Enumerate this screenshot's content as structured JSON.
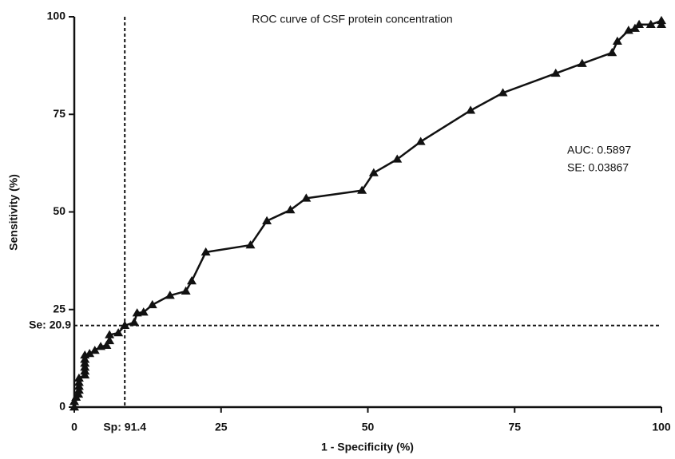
{
  "chart_data": {
    "type": "line",
    "title": "ROC curve of CSF protein concentration",
    "x_label": "1 - Specificity (%)",
    "y_label": "Sensitivity (%)",
    "xlim": [
      0,
      100
    ],
    "ylim": [
      0,
      100
    ],
    "xticks": [
      0,
      25,
      50,
      75,
      100
    ],
    "yticks": [
      0,
      25,
      50,
      75,
      100
    ],
    "series": [
      {
        "color": "#111111",
        "marker": "triangle",
        "x": [
          0,
          0,
          0.3,
          0.7,
          0.8,
          0.8,
          0.8,
          0.8,
          1.8,
          1.8,
          1.8,
          1.8,
          1.8,
          1.8,
          2.6,
          3.5,
          4.5,
          5.5,
          6,
          6,
          7.5,
          8.6,
          10.2,
          10.7,
          11.8,
          13.3,
          16.3,
          19,
          20,
          22.4,
          30,
          32.8,
          36.8,
          39.5,
          49,
          51,
          55,
          59,
          67.5,
          73,
          82,
          86.5,
          91.6,
          92.5,
          94.4,
          95.5,
          96.2,
          98.2,
          100,
          100
        ],
        "values": [
          0,
          1.4,
          2.5,
          3.3,
          4.3,
          5.3,
          6.3,
          7.4,
          8.2,
          9.2,
          10.2,
          11.2,
          12.2,
          13.3,
          13.7,
          14.5,
          15.5,
          15.8,
          17,
          18.5,
          19,
          20.9,
          21.7,
          24.1,
          24.3,
          26.2,
          28.6,
          29.7,
          32.3,
          39.7,
          41.5,
          47.7,
          50.5,
          53.5,
          55.5,
          60,
          63.5,
          68,
          76,
          80.5,
          85.5,
          88,
          90.8,
          93.7,
          96.5,
          97,
          98,
          98,
          99,
          98
        ]
      }
    ],
    "reference_lines": [
      {
        "axis": "x",
        "value": 8.6,
        "label": "Sp: 91.4"
      },
      {
        "axis": "y",
        "value": 20.9,
        "label": "Se: 20.9"
      }
    ],
    "annotations": [
      "AUC: 0.5897",
      "SE: 0.03867"
    ]
  }
}
